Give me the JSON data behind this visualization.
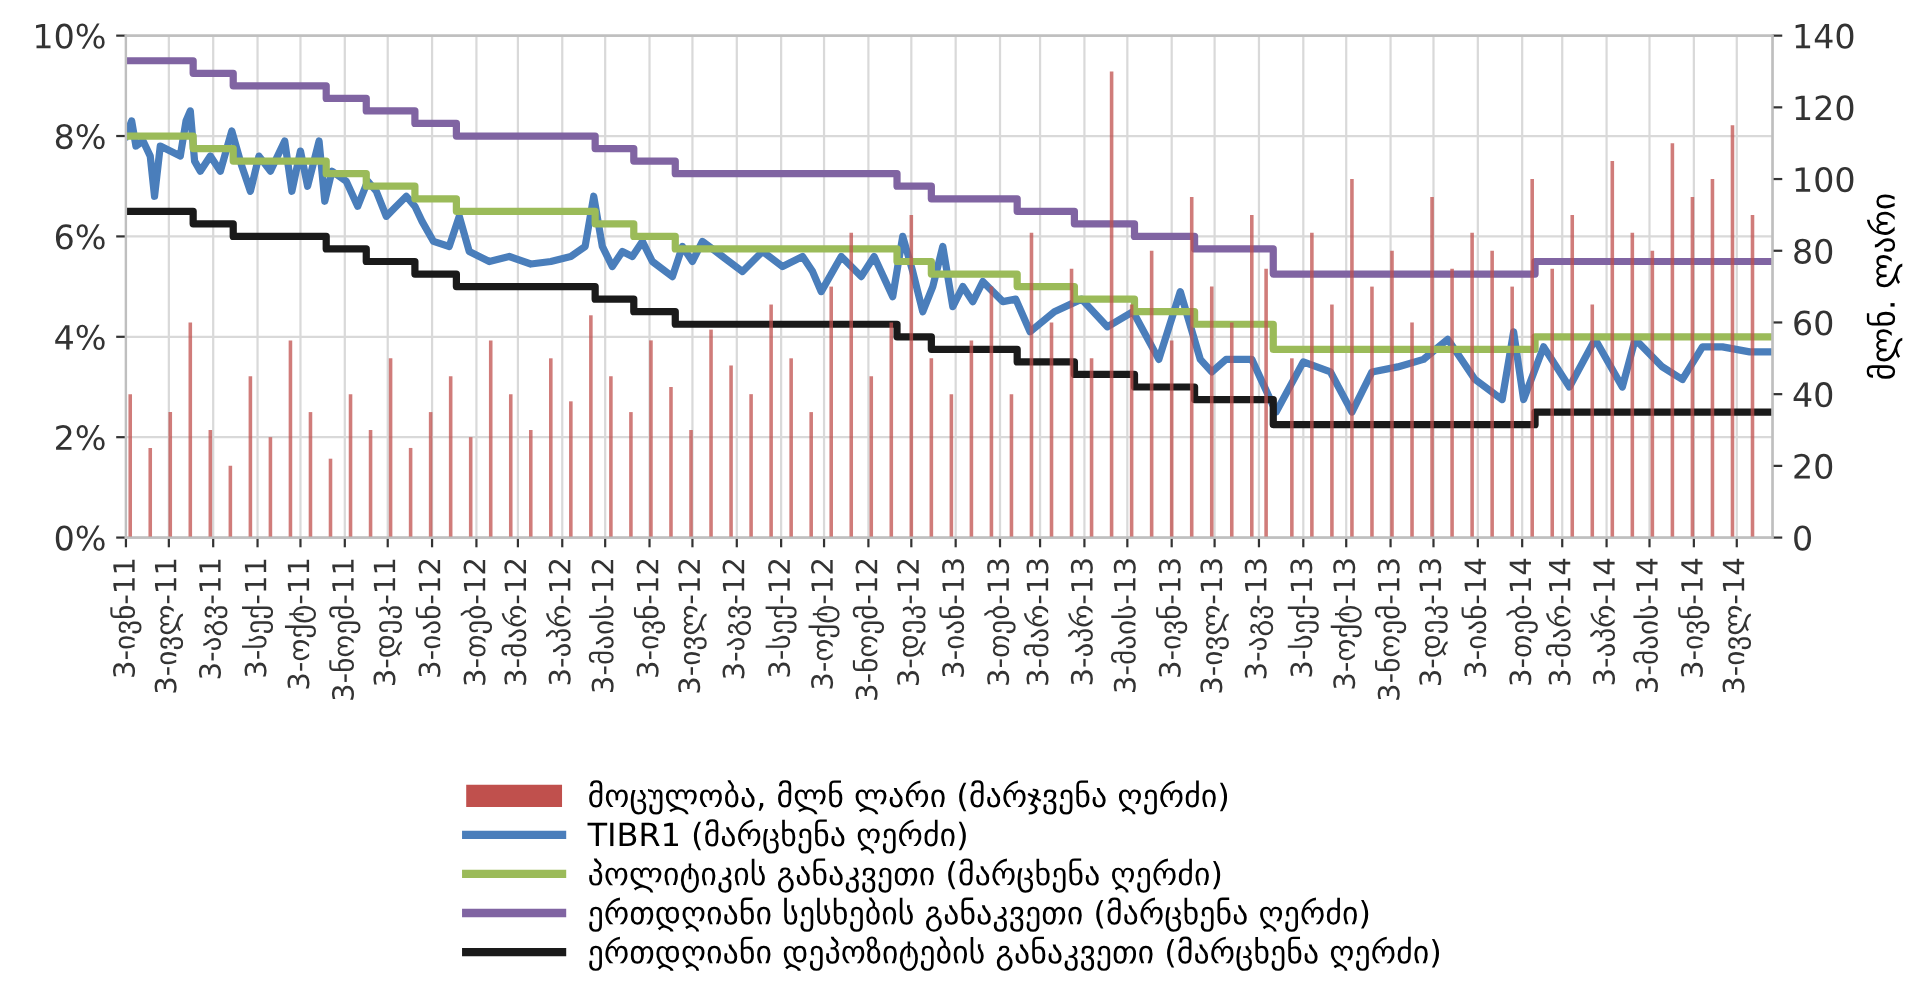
{
  "chart_data": {
    "type": "line",
    "y2label": "მლნ. ლარი",
    "legend": "bottom",
    "grid": true,
    "line_style": "solid",
    "xlim": [
      "2011-06-03",
      "2014-07-28"
    ],
    "xticks": [
      {
        "value": "2011-06-03",
        "label": "3-ივნ-11"
      },
      {
        "value": "2011-07-03",
        "label": "3-ივლ-11"
      },
      {
        "value": "2011-08-03",
        "label": "3-აგვ-11"
      },
      {
        "value": "2011-09-03",
        "label": "3-სექ-11"
      },
      {
        "value": "2011-10-03",
        "label": "3-ოქტ-11"
      },
      {
        "value": "2011-11-03",
        "label": "3-ნოემ-11"
      },
      {
        "value": "2011-12-03",
        "label": "3-დეკ-11"
      },
      {
        "value": "2012-01-03",
        "label": "3-იან-12"
      },
      {
        "value": "2012-02-03",
        "label": "3-თებ-12"
      },
      {
        "value": "2012-03-03",
        "label": "3-მარ-12"
      },
      {
        "value": "2012-04-03",
        "label": "3-აპრ-12"
      },
      {
        "value": "2012-05-03",
        "label": "3-მაის-12"
      },
      {
        "value": "2012-06-03",
        "label": "3-ივნ-12"
      },
      {
        "value": "2012-07-03",
        "label": "3-ივლ-12"
      },
      {
        "value": "2012-08-03",
        "label": "3-აგვ-12"
      },
      {
        "value": "2012-09-03",
        "label": "3-სექ-12"
      },
      {
        "value": "2012-10-03",
        "label": "3-ოქტ-12"
      },
      {
        "value": "2012-11-03",
        "label": "3-ნოემ-12"
      },
      {
        "value": "2012-12-03",
        "label": "3-დეკ-12"
      },
      {
        "value": "2013-01-03",
        "label": "3-იან-13"
      },
      {
        "value": "2013-02-03",
        "label": "3-თებ-13"
      },
      {
        "value": "2013-03-03",
        "label": "3-მარ-13"
      },
      {
        "value": "2013-04-03",
        "label": "3-აპრ-13"
      },
      {
        "value": "2013-05-03",
        "label": "3-მაის-13"
      },
      {
        "value": "2013-06-03",
        "label": "3-ივნ-13"
      },
      {
        "value": "2013-07-03",
        "label": "3-ივლ-13"
      },
      {
        "value": "2013-08-03",
        "label": "3-აგვ-13"
      },
      {
        "value": "2013-09-03",
        "label": "3-სექ-13"
      },
      {
        "value": "2013-10-03",
        "label": "3-ოქტ-13"
      },
      {
        "value": "2013-11-03",
        "label": "3-ნოემ-13"
      },
      {
        "value": "2013-12-03",
        "label": "3-დეკ-13"
      },
      {
        "value": "2014-01-03",
        "label": "3-იან-14"
      },
      {
        "value": "2014-02-03",
        "label": "3-თებ-14"
      },
      {
        "value": "2014-03-03",
        "label": "3-მარ-14"
      },
      {
        "value": "2014-04-03",
        "label": "3-აპრ-14"
      },
      {
        "value": "2014-05-03",
        "label": "3-მაის-14"
      },
      {
        "value": "2014-06-03",
        "label": "3-ივნ-14"
      },
      {
        "value": "2014-07-03",
        "label": "3-ივლ-14"
      }
    ],
    "ylim": [
      0,
      10
    ],
    "yticks": [
      {
        "value": 0,
        "label": "0%"
      },
      {
        "value": 2,
        "label": "2%"
      },
      {
        "value": 4,
        "label": "4%"
      },
      {
        "value": 6,
        "label": "6%"
      },
      {
        "value": 8,
        "label": "8%"
      },
      {
        "value": 10,
        "label": "10%"
      }
    ],
    "y2lim": [
      0,
      140
    ],
    "y2ticks": [
      0,
      20,
      40,
      60,
      80,
      100,
      120,
      140
    ],
    "series": [
      {
        "name": "მოცულობა, მლნ ლარი (მარჯვენა ღერძი)",
        "type": "bar",
        "axis": "y2",
        "color": "#c0504d",
        "x": [
          "2011-06-06",
          "2011-06-20",
          "2011-07-04",
          "2011-07-18",
          "2011-08-01",
          "2011-08-15",
          "2011-08-29",
          "2011-09-12",
          "2011-09-26",
          "2011-10-10",
          "2011-10-24",
          "2011-11-07",
          "2011-11-21",
          "2011-12-05",
          "2011-12-19",
          "2012-01-02",
          "2012-01-16",
          "2012-01-30",
          "2012-02-13",
          "2012-02-27",
          "2012-03-12",
          "2012-03-26",
          "2012-04-09",
          "2012-04-23",
          "2012-05-07",
          "2012-05-21",
          "2012-06-04",
          "2012-06-18",
          "2012-07-02",
          "2012-07-16",
          "2012-07-30",
          "2012-08-13",
          "2012-08-27",
          "2012-09-10",
          "2012-09-24",
          "2012-10-08",
          "2012-10-22",
          "2012-11-05",
          "2012-11-19",
          "2012-12-03",
          "2012-12-17",
          "2012-12-31",
          "2013-01-14",
          "2013-01-28",
          "2013-02-11",
          "2013-02-25",
          "2013-03-11",
          "2013-03-25",
          "2013-04-08",
          "2013-04-22",
          "2013-05-06",
          "2013-05-20",
          "2013-06-03",
          "2013-06-17",
          "2013-07-01",
          "2013-07-15",
          "2013-07-29",
          "2013-08-08",
          "2013-08-26",
          "2013-09-09",
          "2013-09-23",
          "2013-10-07",
          "2013-10-21",
          "2013-11-04",
          "2013-11-18",
          "2013-12-02",
          "2013-12-16",
          "2013-12-30",
          "2014-01-13",
          "2014-01-27",
          "2014-02-10",
          "2014-02-24",
          "2014-03-10",
          "2014-03-24",
          "2014-04-07",
          "2014-04-21",
          "2014-05-05",
          "2014-05-19",
          "2014-06-02",
          "2014-06-16",
          "2014-06-30",
          "2014-07-14"
        ],
        "values": [
          40,
          25,
          35,
          60,
          30,
          20,
          45,
          28,
          55,
          35,
          22,
          40,
          30,
          50,
          25,
          35,
          45,
          28,
          55,
          40,
          30,
          50,
          38,
          62,
          45,
          35,
          55,
          42,
          30,
          58,
          48,
          40,
          65,
          50,
          35,
          70,
          85,
          45,
          60,
          90,
          50,
          40,
          55,
          70,
          40,
          85,
          60,
          75,
          50,
          130,
          65,
          80,
          55,
          95,
          70,
          60,
          90,
          75,
          50,
          85,
          65,
          100,
          70,
          80,
          60,
          95,
          75,
          85,
          80,
          70,
          100,
          75,
          90,
          65,
          105,
          85,
          80,
          110,
          95,
          100,
          115,
          90
        ]
      },
      {
        "name": "TIBR1 (მარცხენა ღერძი)",
        "color": "#4a7ebb",
        "x": [
          "2011-06-03",
          "2011-06-07",
          "2011-06-10",
          "2011-06-15",
          "2011-06-20",
          "2011-06-23",
          "2011-06-27",
          "2011-07-04",
          "2011-07-11",
          "2011-07-15",
          "2011-07-18",
          "2011-07-21",
          "2011-07-25",
          "2011-08-01",
          "2011-08-08",
          "2011-08-14",
          "2011-08-16",
          "2011-08-23",
          "2011-08-29",
          "2011-09-04",
          "2011-09-12",
          "2011-09-22",
          "2011-09-27",
          "2011-10-03",
          "2011-10-08",
          "2011-10-16",
          "2011-10-20",
          "2011-10-25",
          "2011-11-04",
          "2011-11-12",
          "2011-11-19",
          "2011-11-25",
          "2011-12-02",
          "2011-12-09",
          "2011-12-16",
          "2011-12-22",
          "2011-12-27",
          "2012-01-04",
          "2012-01-15",
          "2012-01-22",
          "2012-01-29",
          "2012-02-12",
          "2012-02-26",
          "2012-03-12",
          "2012-03-26",
          "2012-04-09",
          "2012-04-19",
          "2012-04-25",
          "2012-05-01",
          "2012-05-08",
          "2012-05-15",
          "2012-05-22",
          "2012-05-29",
          "2012-06-05",
          "2012-06-19",
          "2012-06-26",
          "2012-07-03",
          "2012-07-10",
          "2012-07-24",
          "2012-08-07",
          "2012-08-21",
          "2012-09-04",
          "2012-09-18",
          "2012-09-25",
          "2012-10-01",
          "2012-10-15",
          "2012-10-29",
          "2012-11-07",
          "2012-11-20",
          "2012-11-27",
          "2012-12-04",
          "2012-12-11",
          "2012-12-18",
          "2012-12-25",
          "2013-01-01",
          "2013-01-08",
          "2013-01-15",
          "2013-01-22",
          "2013-01-29",
          "2013-02-05",
          "2013-02-14",
          "2013-02-24",
          "2013-03-13",
          "2013-04-01",
          "2013-04-19",
          "2013-05-07",
          "2013-05-25",
          "2013-06-09",
          "2013-06-23",
          "2013-07-01",
          "2013-07-11",
          "2013-07-29",
          "2013-08-15",
          "2013-09-03",
          "2013-09-22",
          "2013-10-07",
          "2013-10-21",
          "2013-11-08",
          "2013-11-26",
          "2013-12-13",
          "2014-01-01",
          "2014-01-20",
          "2014-01-28",
          "2014-02-04",
          "2014-02-18",
          "2014-03-08",
          "2014-03-26",
          "2014-04-14",
          "2014-04-23",
          "2014-05-12",
          "2014-05-26",
          "2014-06-09",
          "2014-06-23",
          "2014-07-12",
          "2014-07-21",
          "2014-07-28"
        ],
        "values": [
          8.0,
          8.3,
          7.8,
          7.9,
          7.6,
          6.8,
          7.8,
          7.7,
          7.6,
          8.3,
          8.5,
          7.5,
          7.3,
          7.6,
          7.3,
          7.9,
          8.1,
          7.4,
          6.9,
          7.6,
          7.3,
          7.9,
          6.9,
          7.7,
          7.0,
          7.9,
          6.7,
          7.3,
          7.1,
          6.6,
          7.1,
          6.9,
          6.4,
          6.6,
          6.8,
          6.6,
          6.3,
          5.9,
          5.8,
          6.4,
          5.7,
          5.5,
          5.6,
          5.45,
          5.5,
          5.6,
          5.8,
          6.8,
          5.8,
          5.4,
          5.7,
          5.6,
          5.9,
          5.5,
          5.2,
          5.8,
          5.5,
          5.9,
          5.6,
          5.3,
          5.7,
          5.4,
          5.6,
          5.3,
          4.9,
          5.6,
          5.2,
          5.6,
          4.8,
          6.0,
          5.3,
          4.5,
          5.0,
          5.8,
          4.6,
          5.0,
          4.7,
          5.1,
          4.9,
          4.7,
          4.75,
          4.1,
          4.5,
          4.75,
          4.2,
          4.5,
          3.55,
          4.9,
          3.55,
          3.3,
          3.55,
          3.55,
          2.5,
          3.5,
          3.3,
          2.5,
          3.3,
          3.4,
          3.55,
          3.95,
          3.15,
          2.75,
          4.1,
          2.75,
          3.8,
          3.0,
          3.95,
          3.0,
          3.95,
          3.4,
          3.15,
          3.8,
          3.8,
          3.7,
          3.7,
          3.7
        ]
      },
      {
        "name": "პოლიტიკის განაკვეთი (მარცხენა ღერძი)",
        "type": "step",
        "color": "#9bbb59",
        "x": [
          "2011-06-03",
          "2011-07-20",
          "2011-08-17",
          "2011-10-21",
          "2011-11-18",
          "2011-12-22",
          "2012-01-20",
          "2012-04-26",
          "2012-05-23",
          "2012-06-21",
          "2012-11-23",
          "2012-12-17",
          "2013-02-15",
          "2013-03-27",
          "2013-05-08",
          "2013-06-19",
          "2013-08-13",
          "2014-02-12",
          "2014-07-28"
        ],
        "values": [
          8.0,
          7.75,
          7.5,
          7.25,
          7.0,
          6.75,
          6.5,
          6.25,
          6.0,
          5.75,
          5.5,
          5.25,
          5.0,
          4.75,
          4.5,
          4.25,
          3.75,
          4.0,
          4.0
        ]
      },
      {
        "name": "ერთდღიანი სესხების განაკვეთი (მარცხენა ღერძი)",
        "type": "step",
        "color": "#8064a2",
        "x": [
          "2011-06-03",
          "2011-07-20",
          "2011-08-17",
          "2011-10-21",
          "2011-11-18",
          "2011-12-22",
          "2012-01-20",
          "2012-04-26",
          "2012-05-23",
          "2012-06-21",
          "2012-11-23",
          "2012-12-17",
          "2013-02-15",
          "2013-03-27",
          "2013-05-08",
          "2013-06-19",
          "2013-08-13",
          "2014-02-12",
          "2014-07-28"
        ],
        "values": [
          9.5,
          9.25,
          9.0,
          8.75,
          8.5,
          8.25,
          8.0,
          7.75,
          7.5,
          7.25,
          7.0,
          6.75,
          6.5,
          6.25,
          6.0,
          5.75,
          5.25,
          5.5,
          5.5
        ]
      },
      {
        "name": "ერთდღიანი დეპოზიტების განაკვეთი (მარცხენა ღერძი)",
        "type": "step",
        "color": "#1a1a1a",
        "x": [
          "2011-06-03",
          "2011-07-20",
          "2011-08-17",
          "2011-10-21",
          "2011-11-18",
          "2011-12-22",
          "2012-01-20",
          "2012-04-26",
          "2012-05-23",
          "2012-06-21",
          "2012-11-23",
          "2012-12-17",
          "2013-02-15",
          "2013-03-27",
          "2013-05-08",
          "2013-06-19",
          "2013-08-13",
          "2014-02-12",
          "2014-07-28"
        ],
        "values": [
          6.5,
          6.25,
          6.0,
          5.75,
          5.5,
          5.25,
          5.0,
          4.75,
          4.5,
          4.25,
          4.0,
          3.75,
          3.5,
          3.25,
          3.0,
          2.75,
          2.25,
          2.5,
          2.5
        ]
      }
    ]
  }
}
